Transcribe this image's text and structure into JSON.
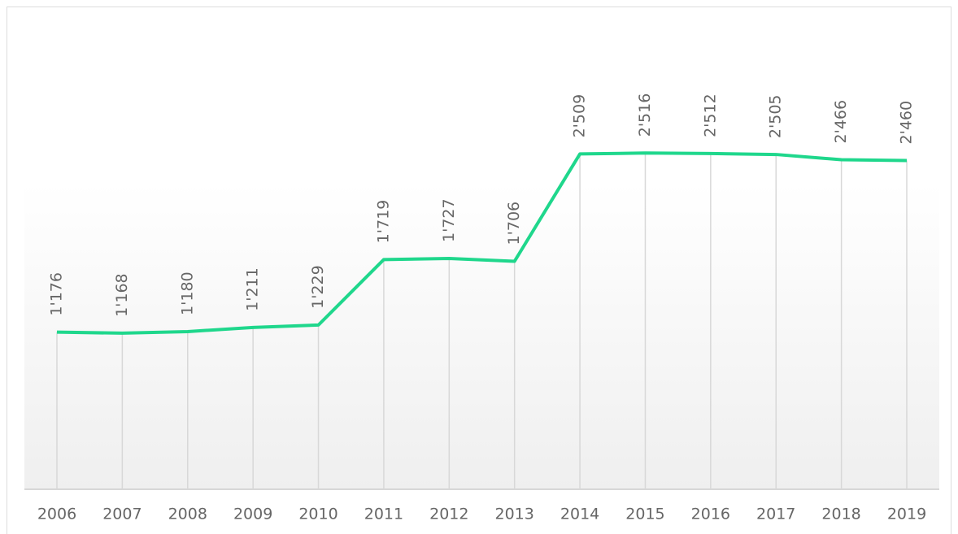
{
  "chart_data": {
    "type": "line",
    "categories": [
      "2006",
      "2007",
      "2008",
      "2009",
      "2010",
      "2011",
      "2012",
      "2013",
      "2014",
      "2015",
      "2016",
      "2017",
      "2018",
      "2019"
    ],
    "values": [
      1176,
      1168,
      1180,
      1211,
      1229,
      1719,
      1727,
      1706,
      2509,
      2516,
      2512,
      2505,
      2466,
      2460
    ],
    "value_labels": [
      "1'176",
      "1'168",
      "1'180",
      "1'211",
      "1'229",
      "1'719",
      "1'727",
      "1'706",
      "2'509",
      "2'516",
      "2'512",
      "2'505",
      "2'466",
      "2'460"
    ],
    "color": "#1fd78c",
    "ylim": [
      0,
      3600
    ]
  }
}
